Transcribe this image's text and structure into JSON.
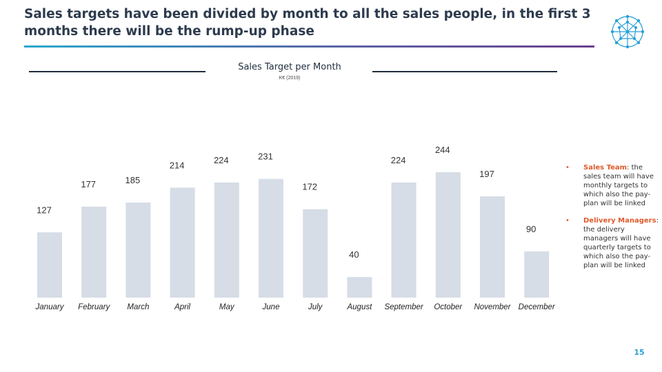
{
  "header": {
    "title": "Sales targets have been divided by month to all the sales people, in the first 3 months there will be the rump-up phase"
  },
  "colors": {
    "bar": "#d6dde6",
    "accent": "#e05a2b",
    "page_number": "#2a9fd6",
    "rule_start": "#2aa7cc",
    "rule_end": "#6b3f8e"
  },
  "logo": {
    "icon": "network-globe-icon"
  },
  "chart_data": {
    "type": "bar",
    "title": "Sales Target per Month",
    "subtitle": "K€ (2019)",
    "categories": [
      "January",
      "February",
      "March",
      "April",
      "May",
      "June",
      "July",
      "August",
      "September",
      "October",
      "November",
      "December"
    ],
    "values": [
      127,
      177,
      185,
      214,
      224,
      231,
      172,
      40,
      224,
      244,
      197,
      90
    ],
    "grid": false,
    "legend": "none"
  },
  "notes": [
    {
      "key": "Sales Team",
      "text": ": the sales team will have monthly targets to which also the pay-plan will be linked"
    },
    {
      "key": "Delivery Managers",
      "text": ": the delivery managers will have quarterly targets to which also the pay-plan will be linked"
    }
  ],
  "footer": {
    "page_number": "15"
  }
}
